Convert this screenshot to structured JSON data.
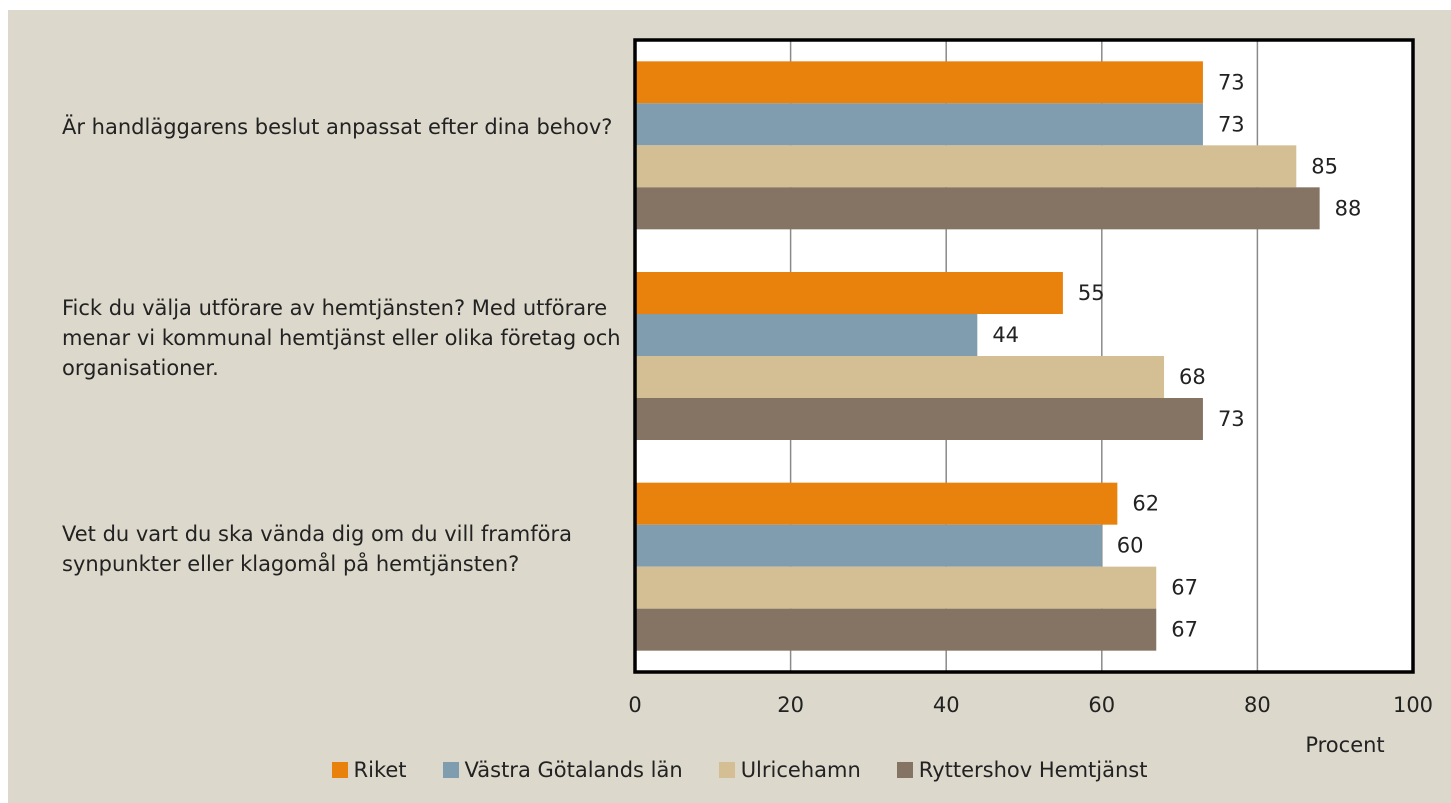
{
  "chart_data": {
    "type": "barh",
    "categories": [
      "Är handläggarens beslut anpassat efter dina behov?",
      "Fick du välja utförare av hemtjänsten? Med utförare menar vi kommunal hemtjänst eller olika företag och organisationer.",
      "Vet du vart du ska vända dig om du vill framföra synpunkter eller klagomål på hemtjänsten?"
    ],
    "series": [
      {
        "name": "Riket",
        "color": "#e8820c",
        "values": [
          73,
          55,
          62
        ]
      },
      {
        "name": "Västra Götalands län",
        "color": "#7f9dae",
        "values": [
          73,
          44,
          60
        ]
      },
      {
        "name": "Ulricehamn",
        "color": "#d4be94",
        "values": [
          85,
          68,
          67
        ]
      },
      {
        "name": "Ryttershov Hemtjänst",
        "color": "#857463",
        "values": [
          88,
          73,
          67
        ]
      }
    ],
    "xlabel": "Procent",
    "xlim": [
      0,
      100
    ],
    "xticks": [
      0,
      20,
      40,
      60,
      80,
      100
    ],
    "grid": true,
    "legend": "bottom"
  }
}
